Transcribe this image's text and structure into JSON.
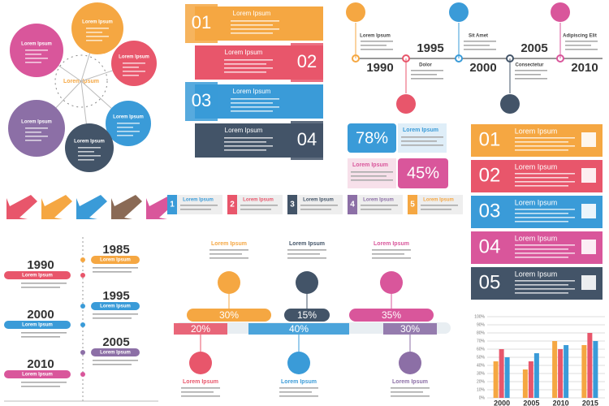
{
  "circle_diagram": {
    "center": "Lorem Ipsum",
    "items": [
      "Lorem Ipsum",
      "Lorem Ipsum",
      "Lorem Ipsum",
      "Lorem Ipsum",
      "Lorem Ipsum",
      "Lorem Ipsum"
    ]
  },
  "banners": [
    {
      "number": "01",
      "title": "Lorem Ipsum"
    },
    {
      "number": "02",
      "title": "Lorem Ipsum"
    },
    {
      "number": "03",
      "title": "Lorem Ipsum"
    },
    {
      "number": "04",
      "title": "Lorem Ipsum"
    }
  ],
  "timeline": {
    "years": [
      "1990",
      "1995",
      "2000",
      "2005",
      "2010"
    ],
    "labels": [
      "Lorem Ipsum",
      "Dolor",
      "Sit Amet",
      "Consectetur",
      "Adipiscing Elit"
    ]
  },
  "percent_boxes": [
    {
      "value": "78%",
      "title": "Lorem Ipsum"
    },
    {
      "value": "45%",
      "title": "Lorem Ipsum"
    }
  ],
  "steps": [
    {
      "number": "1",
      "title": "Lorem Ipsum"
    },
    {
      "number": "2",
      "title": "Lorem Ipsum"
    },
    {
      "number": "3",
      "title": "Lorem Ipsum"
    },
    {
      "number": "4",
      "title": "Lorem Ipsum"
    },
    {
      "number": "5",
      "title": "Lorem Ipsum"
    }
  ],
  "options": [
    {
      "number": "01",
      "title": "Lorem Ipsum"
    },
    {
      "number": "02",
      "title": "Lorem Ipsum"
    },
    {
      "number": "03",
      "title": "Lorem Ipsum"
    },
    {
      "number": "04",
      "title": "Lorem Ipsum"
    },
    {
      "number": "05",
      "title": "Lorem Ipsum"
    }
  ],
  "vertical_timeline": [
    {
      "year": "1985",
      "title": "Lorem Ipsum"
    },
    {
      "year": "1990",
      "title": "Lorem Ipsum"
    },
    {
      "year": "1995",
      "title": "Lorem Ipsum"
    },
    {
      "year": "2000",
      "title": "Lorem Ipsum"
    },
    {
      "year": "2005",
      "title": "Lorem Ipsum"
    },
    {
      "year": "2010",
      "title": "Lorem Ipsum"
    }
  ],
  "process": {
    "top": [
      {
        "title": "Lorem Ipsum",
        "percent": "30%"
      },
      {
        "title": "Lorem Ipsum",
        "percent": "15%"
      },
      {
        "title": "Lorem Ipsum",
        "percent": "35%"
      }
    ],
    "bottom": [
      {
        "title": "Lorem Ipsum",
        "percent": "20%"
      },
      {
        "title": "Lorem Ipsum",
        "percent": "40%"
      },
      {
        "title": "Lorem Ipsum",
        "percent": "30%"
      }
    ]
  },
  "chart_data": {
    "type": "bar",
    "categories": [
      "2000",
      "2005",
      "2010",
      "2015"
    ],
    "series": [
      {
        "color": "#f5a742",
        "values": [
          45,
          35,
          70,
          65
        ]
      },
      {
        "color": "#e8566b",
        "values": [
          60,
          45,
          60,
          80
        ]
      },
      {
        "color": "#3a9bd8",
        "values": [
          50,
          55,
          65,
          70
        ]
      }
    ],
    "ylim": [
      0,
      100
    ],
    "yticks": [
      {
        "value": 0,
        "label": "0%"
      },
      {
        "value": 10,
        "label": "10%"
      },
      {
        "value": 20,
        "label": "20%"
      },
      {
        "value": 30,
        "label": "30%"
      },
      {
        "value": 40,
        "label": "40%"
      },
      {
        "value": 50,
        "label": "50%"
      },
      {
        "value": 60,
        "label": "60%"
      },
      {
        "value": 70,
        "label": "70%"
      },
      {
        "value": 80,
        "label": "80%"
      },
      {
        "value": 90,
        "label": "90%"
      },
      {
        "value": 100,
        "label": "100%"
      }
    ],
    "grid": true
  }
}
